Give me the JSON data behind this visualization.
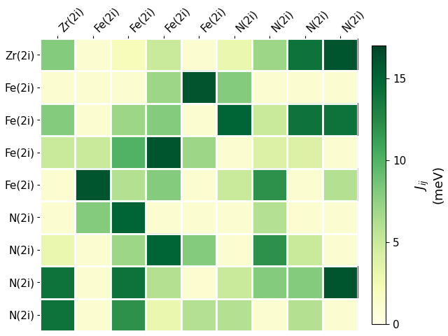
{
  "labels": [
    "Zr(2i)",
    "Fe(2i)",
    "Fe(2i)",
    "Fe(2i)",
    "Fe(2i)",
    "N(2i)",
    "N(2i)",
    "N(2i)",
    "N(2i)"
  ],
  "matrix": [
    [
      8,
      1,
      2,
      5,
      1,
      3,
      7,
      14,
      16
    ],
    [
      1,
      1,
      1,
      7,
      16,
      8,
      1,
      1,
      1
    ],
    [
      8,
      1,
      7,
      8,
      1,
      15,
      5,
      14,
      14
    ],
    [
      5,
      5,
      10,
      16,
      7,
      1,
      4,
      4,
      1
    ],
    [
      1,
      16,
      6,
      8,
      1,
      5,
      12,
      1,
      6
    ],
    [
      1,
      8,
      15,
      1,
      1,
      1,
      6,
      1,
      1
    ],
    [
      3,
      1,
      7,
      15,
      8,
      1,
      12,
      5,
      1
    ],
    [
      14,
      1,
      14,
      6,
      1,
      5,
      8,
      8,
      16
    ],
    [
      14,
      1,
      12,
      3,
      6,
      6,
      1,
      6,
      1
    ]
  ],
  "vmin": 0,
  "vmax": 17,
  "cbar_label_line1": "$J_{ij}$",
  "cbar_label_line2": "(meV)",
  "cbar_ticks": [
    0,
    5,
    10,
    15
  ],
  "background_color": "#ffffff",
  "cmap": "YlGn",
  "figsize": [
    6.4,
    4.8
  ],
  "dpi": 100,
  "tick_fontsize": 11,
  "cbar_tick_fontsize": 11,
  "cbar_label_fontsize": 13
}
